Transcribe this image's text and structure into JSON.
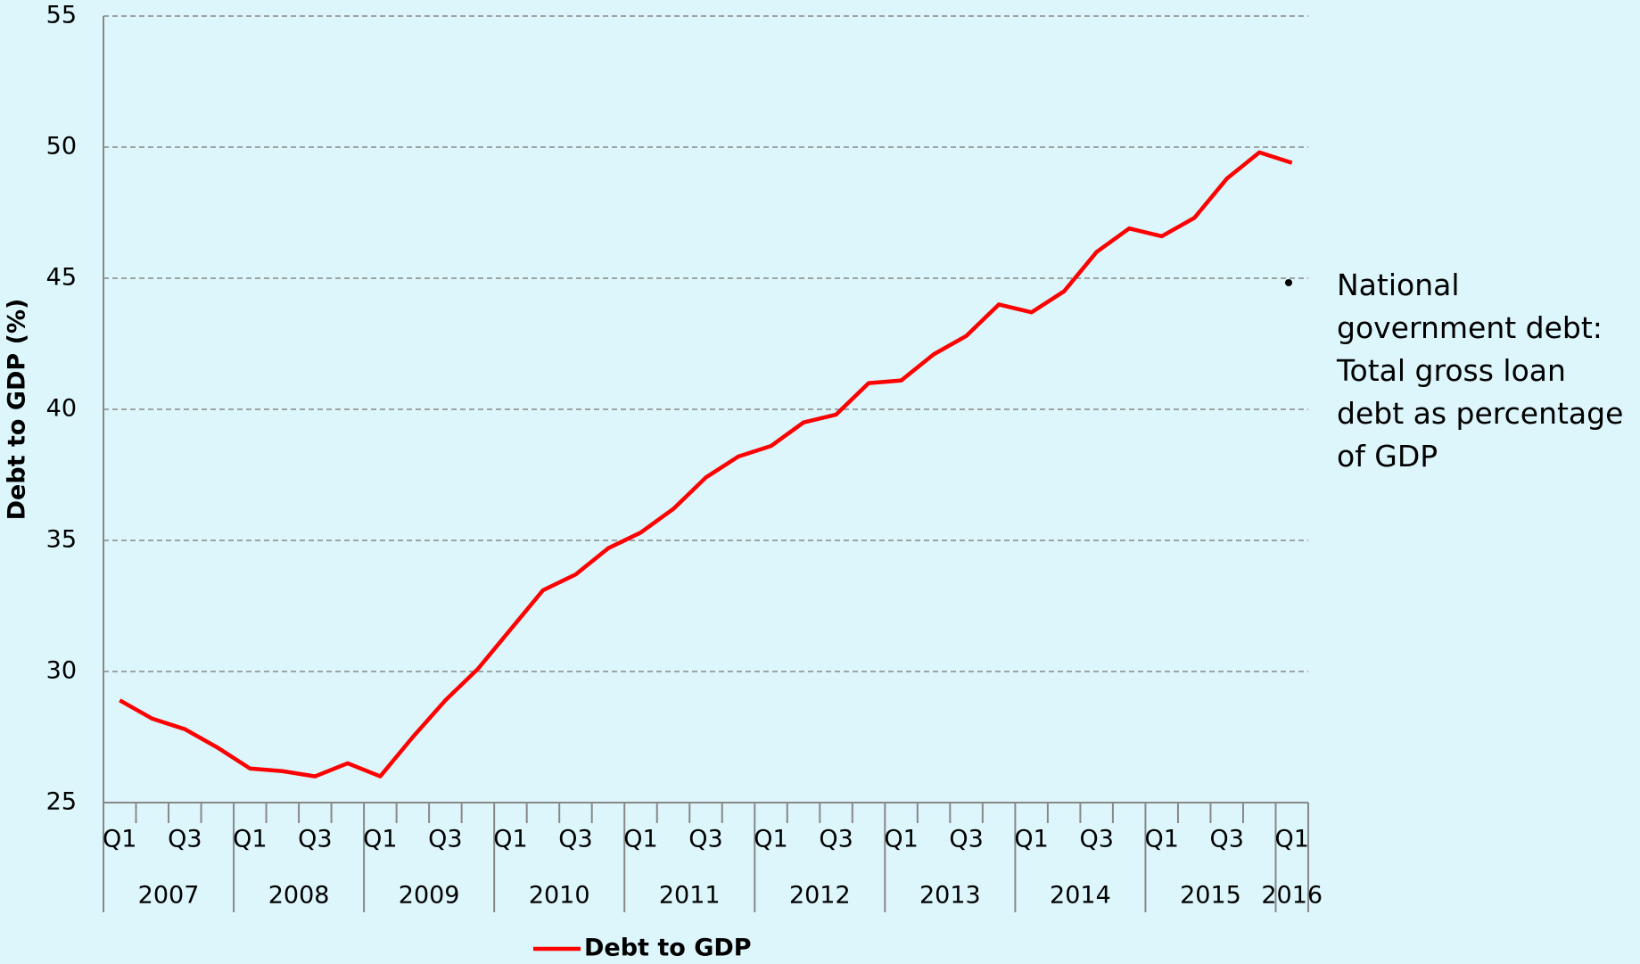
{
  "chart_data": {
    "type": "line",
    "y_label": "Debt to GDP (%)",
    "annotation": "National government debt: Total gross loan debt as percentage of GDP",
    "categories": [
      "Q1",
      null,
      "Q3",
      null,
      "Q1",
      null,
      "Q3",
      null,
      "Q1",
      null,
      "Q3",
      null,
      "Q1",
      null,
      "Q3",
      null,
      "Q1",
      null,
      "Q3",
      null,
      "Q1",
      null,
      "Q3",
      null,
      "Q1",
      null,
      "Q3",
      null,
      "Q1",
      null,
      "Q3",
      null,
      "Q1",
      null,
      "Q3",
      null,
      "Q1"
    ],
    "x_groups": [
      "2007",
      "2008",
      "2009",
      "2010",
      "2011",
      "2012",
      "2013",
      "2014",
      "2015",
      "2016"
    ],
    "series": [
      {
        "name": "Debt to GDP",
        "color": "#ff0000",
        "values": [
          28.9,
          28.2,
          27.8,
          27.1,
          26.3,
          26.2,
          26.0,
          26.5,
          26.0,
          27.5,
          28.9,
          30.1,
          31.6,
          33.1,
          33.7,
          34.7,
          35.3,
          36.2,
          37.4,
          38.2,
          38.6,
          39.5,
          39.8,
          41.0,
          41.1,
          42.1,
          42.8,
          44.0,
          43.7,
          44.5,
          46.0,
          46.9,
          46.6,
          47.3,
          48.8,
          49.8,
          49.4
        ]
      }
    ],
    "ylim": [
      25,
      55
    ],
    "yticks": [
      25,
      30,
      35,
      40,
      45,
      50,
      55
    ],
    "grid": true,
    "legend": "bottom"
  }
}
